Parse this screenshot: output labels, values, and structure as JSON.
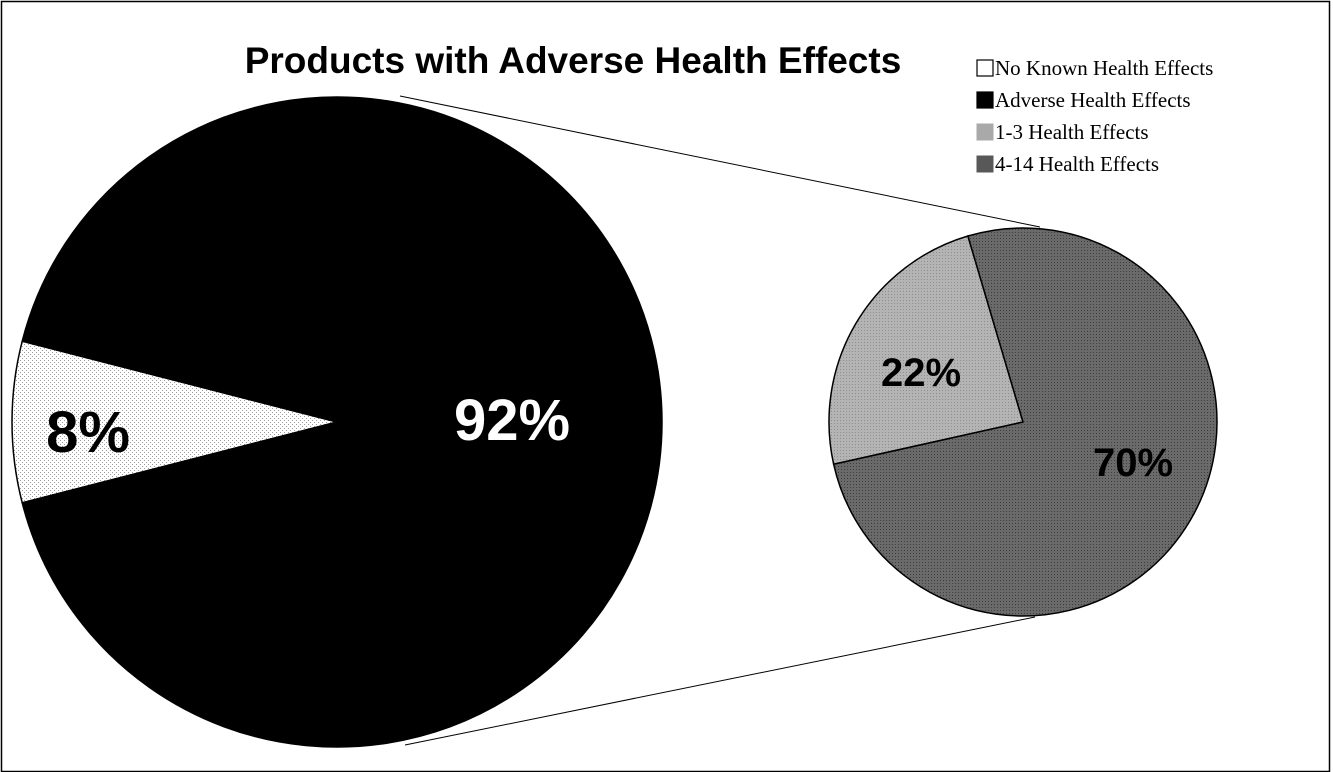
{
  "chart_data": {
    "type": "pie",
    "title": "Products with Adverse Health Effects",
    "main_pie": {
      "slices": [
        {
          "name": "No Known Health Effects",
          "value": 8,
          "label": "8%"
        },
        {
          "name": "Adverse Health Effects",
          "value": 92,
          "label": "92%"
        }
      ]
    },
    "breakout_pie": {
      "of_slice": "Adverse Health Effects",
      "slices": [
        {
          "name": "1-3 Health Effects",
          "value": 22,
          "label": "22%"
        },
        {
          "name": "4-14 Health Effects",
          "value": 70,
          "label": "70%"
        }
      ]
    },
    "legend": {
      "placement": "top-right",
      "entries": [
        {
          "label": "No Known Health Effects",
          "color": "#ffffff"
        },
        {
          "label": "Adverse Health Effects",
          "color": "#000000"
        },
        {
          "label": "1-3 Health Effects",
          "color": "#a9a9a9"
        },
        {
          "label": "4-14 Health Effects",
          "color": "#585858"
        }
      ]
    }
  }
}
